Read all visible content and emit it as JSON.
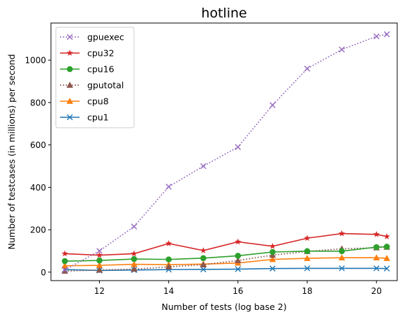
{
  "chart_data": {
    "type": "line",
    "title": "hotline",
    "xlabel": "Number of tests (log base 2)",
    "ylabel": "Number of testcases (in millions) per second",
    "xlim": [
      10.6,
      20.6
    ],
    "ylim": [
      -40,
      1175
    ],
    "xticks": [
      12,
      14,
      16,
      18,
      20
    ],
    "yticks": [
      0,
      200,
      400,
      600,
      800,
      1000
    ],
    "grid": false,
    "legend_position": "top-left",
    "series": [
      {
        "name": "gpuexec",
        "color": "#9467bd",
        "linestyle": "dotted",
        "marker": "x",
        "x": [
          11,
          12,
          13,
          14,
          15,
          16,
          17,
          18,
          19,
          20,
          20.3
        ],
        "y": [
          10,
          100,
          215,
          403,
          500,
          590,
          788,
          960,
          1050,
          1112,
          1122
        ]
      },
      {
        "name": "cpu32",
        "color": "#d62728",
        "linestyle": "solid",
        "marker": "star",
        "x": [
          11,
          12,
          13,
          14,
          15,
          16,
          17,
          18,
          19,
          20,
          20.3
        ],
        "y": [
          87,
          80,
          87,
          135,
          102,
          143,
          122,
          160,
          182,
          178,
          168
        ]
      },
      {
        "name": "cpu16",
        "color": "#2ca02c",
        "linestyle": "solid",
        "marker": "circle",
        "x": [
          11,
          12,
          13,
          14,
          15,
          16,
          17,
          18,
          19,
          20,
          20.3
        ],
        "y": [
          52,
          55,
          62,
          60,
          66,
          77,
          95,
          99,
          99,
          118,
          120
        ]
      },
      {
        "name": "gputotal",
        "color": "#8c564b",
        "linestyle": "dotted",
        "marker": "triangle",
        "x": [
          11,
          12,
          13,
          14,
          15,
          16,
          17,
          18,
          19,
          20,
          20.3
        ],
        "y": [
          5,
          10,
          14,
          25,
          35,
          55,
          80,
          98,
          110,
          115,
          118
        ]
      },
      {
        "name": "cpu8",
        "color": "#ff7f0e",
        "linestyle": "solid",
        "marker": "triangle",
        "x": [
          11,
          12,
          13,
          14,
          15,
          16,
          17,
          18,
          19,
          20,
          20.3
        ],
        "y": [
          30,
          32,
          37,
          35,
          38,
          43,
          60,
          65,
          68,
          68,
          65
        ]
      },
      {
        "name": "cpu1",
        "color": "#1f77b4",
        "linestyle": "solid",
        "marker": "x",
        "x": [
          11,
          12,
          13,
          14,
          15,
          16,
          17,
          18,
          19,
          20,
          20.3
        ],
        "y": [
          12,
          8,
          10,
          12,
          13,
          14,
          17,
          18,
          18,
          18,
          17
        ]
      }
    ]
  }
}
